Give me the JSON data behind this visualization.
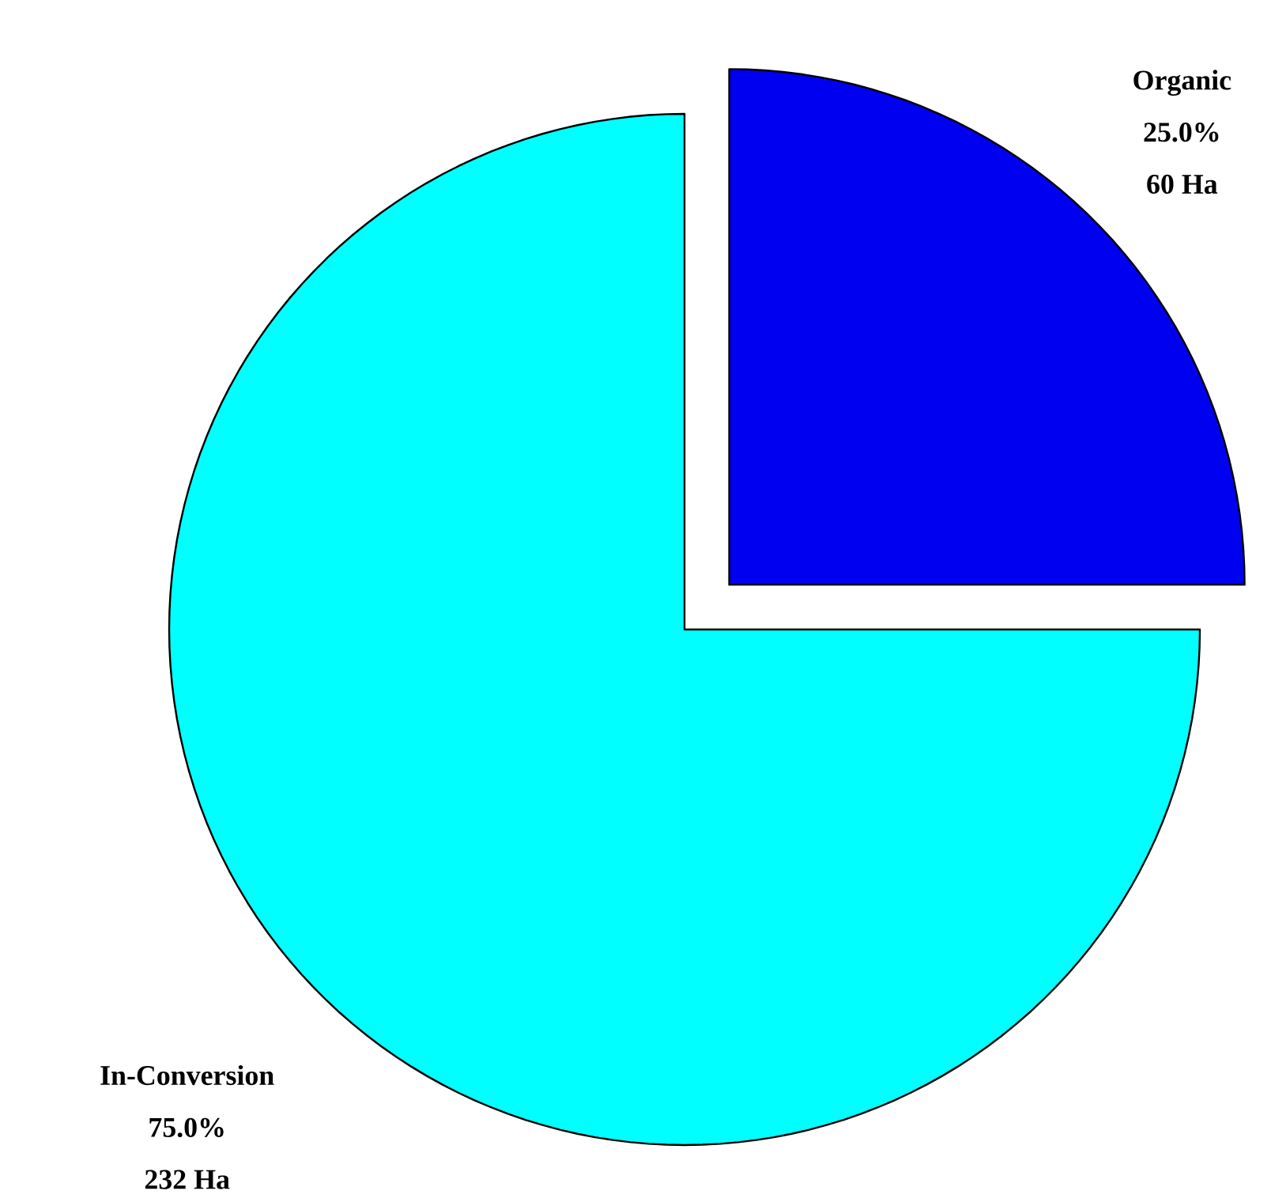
{
  "chart_data": {
    "type": "pie",
    "categories": [
      "Organic",
      "In-Conversion"
    ],
    "values": [
      25,
      75
    ],
    "colors": [
      "#0000f0",
      "#00ffff"
    ],
    "value_labels": [
      "25.0%",
      "75.0%"
    ],
    "annotations": [
      "60 Ha",
      "232 Ha"
    ]
  }
}
